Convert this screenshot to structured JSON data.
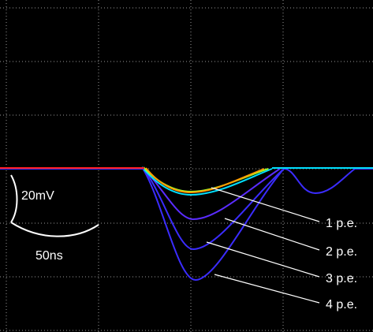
{
  "scale": {
    "voltage": "20mV",
    "time": "50ns"
  },
  "labels": [
    "1 p.e.",
    "2 p.e.",
    "3 p.e.",
    "4 p.e."
  ]
}
